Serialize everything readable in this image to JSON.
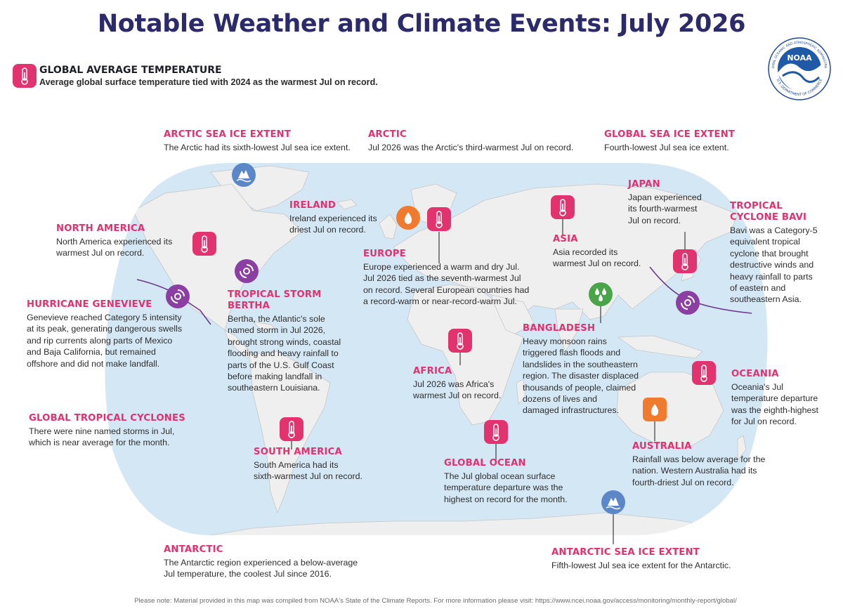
{
  "title": "Notable Weather and Climate Events: July 2026",
  "logo": {
    "text": "NOAA",
    "ring_top": "NATIONAL OCEANIC AND ATMOSPHERIC ADMINISTRATION",
    "ring_bottom": "U.S. DEPARTMENT OF COMMERCE"
  },
  "global_average": {
    "heading": "GLOBAL AVERAGE TEMPERATURE",
    "text": "Average global surface temperature tied with 2024 as the warmest Jul on record.",
    "icon": "thermometer-icon"
  },
  "events": {
    "arctic_sea_ice": {
      "heading": "ARCTIC SEA ICE EXTENT",
      "lines": [
        "The Arctic had its sixth-lowest Jul sea ice extent."
      ],
      "icon": "sea-ice-icon"
    },
    "arctic": {
      "heading": "ARCTIC",
      "lines": [
        "Jul 2026 was the Arctic's third-warmest Jul on record."
      ]
    },
    "global_sea_ice": {
      "heading": "GLOBAL SEA ICE EXTENT",
      "lines": [
        "Fourth-lowest Jul sea ice extent."
      ]
    },
    "ireland": {
      "heading": "IRELAND",
      "lines": [
        "Ireland experienced its",
        "driest Jul on record."
      ],
      "icon": "drought-icon"
    },
    "north_america": {
      "heading": "NORTH AMERICA",
      "lines": [
        "North America experienced its",
        "warmest Jul on record."
      ],
      "icon": "thermometer-icon"
    },
    "japan": {
      "heading": "JAPAN",
      "lines": [
        "Japan experienced",
        "its fourth-warmest",
        "Jul on record."
      ],
      "icon": "thermometer-icon"
    },
    "bavi": {
      "heading_lines": [
        "TROPICAL",
        "CYCLONE BAVI"
      ],
      "lines": [
        "Bavi was a Category-5",
        "equivalent tropical",
        "cyclone that brought",
        "destructive winds and",
        "heavy rainfall to parts",
        "of eastern and",
        "southeastern Asia."
      ],
      "icon": "cyclone-icon"
    },
    "asia": {
      "heading": "ASIA",
      "lines": [
        "Asia recorded its",
        "warmest Jul on record."
      ],
      "icon": "thermometer-icon"
    },
    "europe": {
      "heading": "EUROPE",
      "lines": [
        "Europe experienced a warm and dry Jul.",
        "Jul 2026 tied as the seventh-warmest Jul",
        "on record. Several European countries had",
        "a record-warm or near-record-warm Jul."
      ],
      "icon": "thermometer-icon"
    },
    "genevieve": {
      "heading": "HURRICANE GENEVIEVE",
      "lines": [
        "Genevieve reached Category 5 intensity",
        "at its peak, generating dangerous swells",
        "and rip currents along parts of Mexico",
        "and Baja California, but remained",
        "offshore and did not make landfall."
      ],
      "icon": "cyclone-icon"
    },
    "bertha": {
      "heading_lines": [
        "TROPICAL STORM",
        "BERTHA"
      ],
      "lines": [
        "Bertha, the Atlantic's sole",
        "named storm in Jul 2026,",
        "brought strong winds, coastal",
        "flooding and heavy rainfall to",
        "parts of the U.S. Gulf Coast",
        "before making landfall in",
        "southeastern Louisiana."
      ],
      "icon": "cyclone-icon"
    },
    "bangladesh": {
      "heading": "BANGLADESH",
      "lines": [
        "Heavy monsoon rains",
        "triggered flash floods and",
        "landslides in the southeastern",
        "region. The disaster displaced",
        "thousands of people, claimed",
        "dozens of lives and",
        "damaged infrastructures."
      ],
      "icon": "heavy-rain-icon"
    },
    "africa": {
      "heading": "AFRICA",
      "lines": [
        "Jul 2026 was Africa's",
        "warmest Jul on record."
      ],
      "icon": "thermometer-icon"
    },
    "oceania": {
      "heading": "OCEANIA",
      "lines": [
        "Oceania's Jul",
        "temperature departure",
        "was the eighth-highest",
        "for Jul on record."
      ],
      "icon": "thermometer-icon"
    },
    "global_tc": {
      "heading": "GLOBAL TROPICAL CYCLONES",
      "lines": [
        "There were nine named storms in Jul,",
        "which is near average for the month."
      ]
    },
    "south_america": {
      "heading": "SOUTH AMERICA",
      "lines": [
        "South America had its",
        "sixth-warmest Jul on record."
      ],
      "icon": "thermometer-icon"
    },
    "global_ocean": {
      "heading": "GLOBAL OCEAN",
      "lines": [
        "The Jul global ocean surface",
        "temperature departure was the",
        "highest on record for the month."
      ],
      "icon": "thermometer-icon"
    },
    "australia": {
      "heading": "AUSTRALIA",
      "lines": [
        "Rainfall was below average for the",
        "nation. Western Australia had its",
        "fourth-driest Jul on record."
      ],
      "icon": "drought-icon"
    },
    "antarctic": {
      "heading": "ANTARCTIC",
      "lines": [
        "The Antarctic region experienced a below-average",
        "Jul temperature, the coolest Jul since 2016."
      ]
    },
    "antarctic_sea_ice": {
      "heading": "ANTARCTIC SEA ICE EXTENT",
      "lines": [
        "Fifth-lowest Jul sea ice extent for the Antarctic."
      ],
      "icon": "sea-ice-icon"
    }
  },
  "footnote": "Please note: Material provided in this map was compiled from NOAA's State of the Climate Reports. For more information please visit: https://www.ncei.noaa.gov/access/monitoring/monthly-report/global/",
  "colors": {
    "heading": "#e3306f",
    "title": "#2b2a6b",
    "ocean": "#d4e7f5",
    "land": "#efefef",
    "thermometer": "#e2336f",
    "drought": "#f07a2d",
    "ice": "#5b87c8",
    "rain": "#49a548",
    "cyclone": "#8b3fa3"
  }
}
